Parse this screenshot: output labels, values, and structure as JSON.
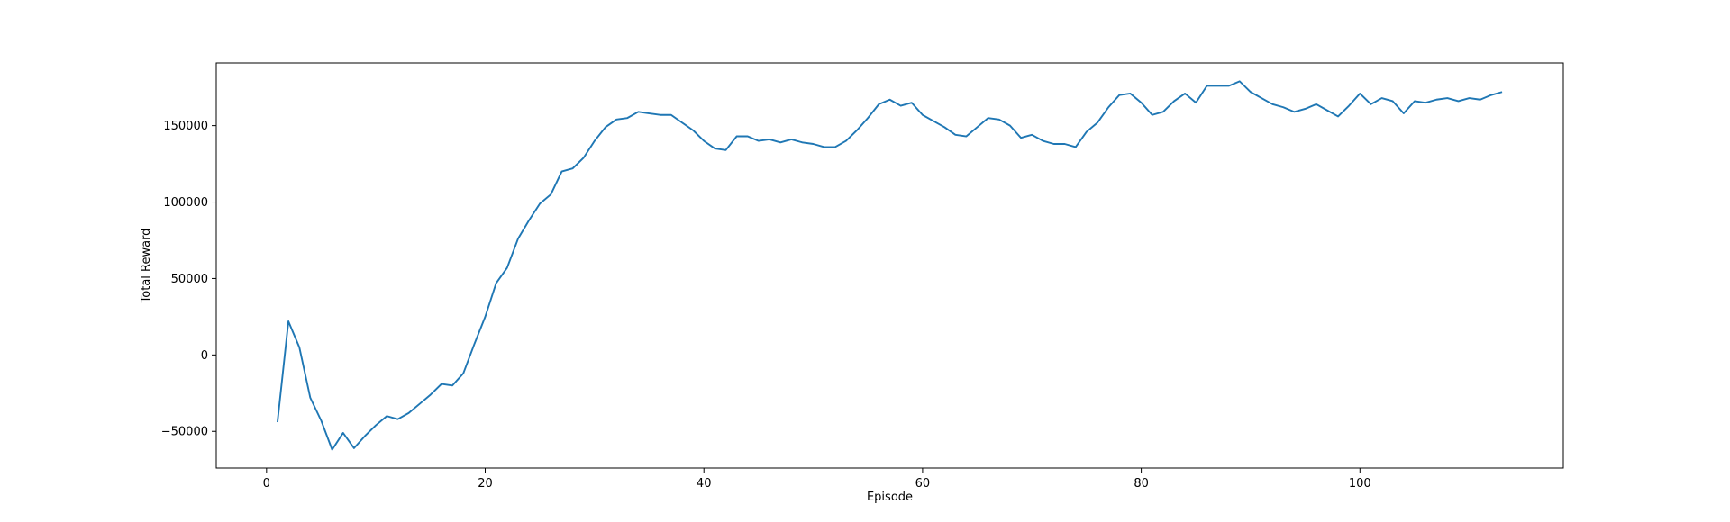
{
  "chart_data": {
    "type": "line",
    "title": "",
    "xlabel": "Episode",
    "ylabel": "Total Reward",
    "xlim": [
      -4.6,
      118.6
    ],
    "ylim": [
      -74000,
      191000
    ],
    "xticks": [
      0,
      20,
      40,
      60,
      80,
      100
    ],
    "xtick_labels": [
      "0",
      "20",
      "40",
      "60",
      "80",
      "100"
    ],
    "yticks": [
      -50000,
      0,
      50000,
      100000,
      150000
    ],
    "ytick_labels": [
      "−50000",
      "0",
      "50000",
      "100000",
      "150000"
    ],
    "grid": false,
    "legend": "none",
    "series": [
      {
        "color": "#1f77b4",
        "x": [
          1,
          2,
          3,
          4,
          5,
          6,
          7,
          8,
          9,
          10,
          11,
          12,
          13,
          14,
          15,
          16,
          17,
          18,
          19,
          20,
          21,
          22,
          23,
          24,
          25,
          26,
          27,
          28,
          29,
          30,
          31,
          32,
          33,
          34,
          35,
          36,
          37,
          38,
          39,
          40,
          41,
          42,
          43,
          44,
          45,
          46,
          47,
          48,
          49,
          50,
          51,
          52,
          53,
          54,
          55,
          56,
          57,
          58,
          59,
          60,
          61,
          62,
          63,
          64,
          65,
          66,
          67,
          68,
          69,
          70,
          71,
          72,
          73,
          74,
          75,
          76,
          77,
          78,
          79,
          80,
          81,
          82,
          83,
          84,
          85,
          86,
          87,
          88,
          89,
          90,
          91,
          92,
          93,
          94,
          95,
          96,
          97,
          98,
          99,
          100,
          101,
          102,
          103,
          104,
          105,
          106,
          107,
          108,
          109,
          110,
          111,
          112,
          113
        ],
        "y": [
          -44000,
          22000,
          5000,
          -28000,
          -43000,
          -62000,
          -51000,
          -61000,
          -53000,
          -46000,
          -40000,
          -42000,
          -38000,
          -32000,
          -26000,
          -19000,
          -20000,
          -12000,
          7000,
          25000,
          47000,
          57000,
          76000,
          88000,
          99000,
          105000,
          120000,
          122000,
          129000,
          140000,
          149000,
          154000,
          155000,
          159000,
          158000,
          157000,
          157000,
          152000,
          147000,
          140000,
          135000,
          134000,
          143000,
          143000,
          140000,
          141000,
          139000,
          141000,
          139000,
          138000,
          136000,
          136000,
          140000,
          147000,
          155000,
          164000,
          167000,
          163000,
          165000,
          157000,
          153000,
          149000,
          144000,
          143000,
          149000,
          155000,
          154000,
          150000,
          142000,
          144000,
          140000,
          138000,
          138000,
          136000,
          146000,
          152000,
          162000,
          170000,
          171000,
          165000,
          157000,
          159000,
          166000,
          171000,
          165000,
          176000,
          176000,
          176000,
          179000,
          172000,
          168000,
          164000,
          162000,
          159000,
          161000,
          164000,
          160000,
          156000,
          163000,
          171000,
          164000,
          168000,
          166000,
          158000,
          166000,
          165000,
          167000,
          168000,
          166000,
          168000,
          167000,
          170000,
          172000
        ]
      }
    ]
  }
}
